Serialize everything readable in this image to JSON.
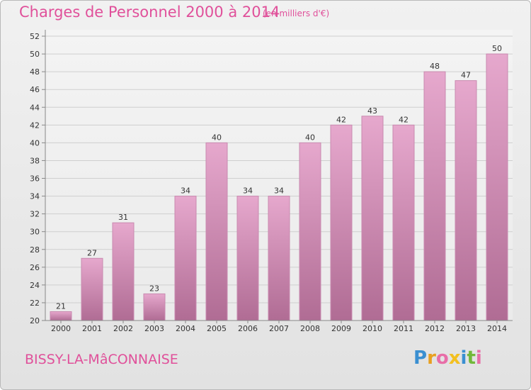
{
  "header": {
    "title": "Charges de Personnel 2000 à 2014",
    "subtitle": "(en milliers d'€)"
  },
  "footer": {
    "commune": "BISSY-LA-MâCONNAISE",
    "logo_letters": [
      "P",
      "r",
      "o",
      "x",
      "i",
      "t",
      "i"
    ],
    "logo_colors": [
      "#3a8fd1",
      "#e8a020",
      "#e86ea8",
      "#f3c020",
      "#3a8fd1",
      "#72b83a",
      "#e86ea8"
    ]
  },
  "colors": {
    "bar_top": "#e6a8cd",
    "bar_bottom": "#b06c94",
    "bar_edge": "#c98ab0",
    "grid": "#cfcfcf",
    "text": "#333333",
    "accent": "#e0509a"
  },
  "chart_data": {
    "type": "bar",
    "categories": [
      "2000",
      "2001",
      "2002",
      "2003",
      "2004",
      "2005",
      "2006",
      "2007",
      "2008",
      "2009",
      "2010",
      "2011",
      "2012",
      "2013",
      "2014"
    ],
    "values": [
      21,
      27,
      31,
      23,
      34,
      40,
      34,
      34,
      40,
      42,
      43,
      42,
      48,
      47,
      50
    ],
    "data_labels": [
      "21",
      "27",
      "31",
      "23",
      "34",
      "40",
      "34",
      "34",
      "40",
      "42",
      "43",
      "42",
      "48",
      "47",
      "50"
    ],
    "title": "Charges de Personnel 2000 à 2014",
    "subtitle": "(en milliers d'€)",
    "xlabel": "",
    "ylabel": "",
    "ylim": [
      20,
      52
    ],
    "yticks": [
      20,
      22,
      24,
      26,
      28,
      30,
      32,
      34,
      36,
      38,
      40,
      42,
      44,
      46,
      48,
      50,
      52
    ],
    "grid": true
  }
}
